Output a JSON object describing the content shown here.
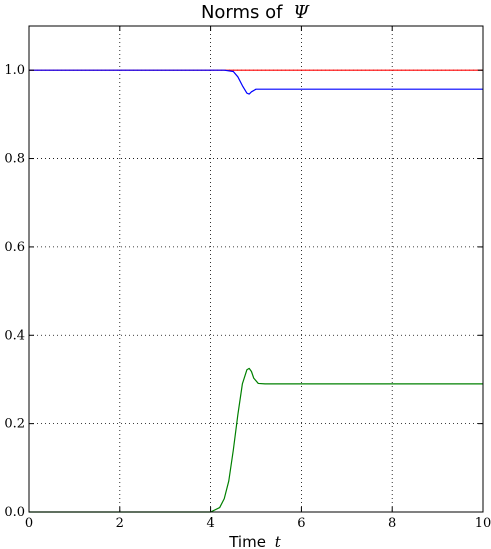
{
  "chart_data": {
    "type": "line",
    "title_prefix": "Norms of",
    "title_symbol": "Ψ",
    "xlabel_prefix": "Time",
    "xlabel_var": "t",
    "ylabel": "",
    "xlim": [
      0,
      10
    ],
    "ylim": [
      0,
      1.1
    ],
    "x_ticks": [
      0,
      2,
      4,
      6,
      8,
      10
    ],
    "x_tick_labels": [
      "0",
      "2",
      "4",
      "6",
      "8",
      "10"
    ],
    "y_ticks": [
      0.0,
      0.2,
      0.4,
      0.6,
      0.8,
      1.0
    ],
    "y_tick_labels": [
      "0.0",
      "0.2",
      "0.4",
      "0.6",
      "0.8",
      "1.0"
    ],
    "grid": true,
    "legend": "none",
    "series": [
      {
        "color": "#ff0000",
        "x": [
          0,
          10
        ],
        "y": [
          1.0,
          1.0
        ]
      },
      {
        "color": "#0000ff",
        "x": [
          0,
          4.3,
          4.5,
          4.6,
          4.7,
          4.8,
          4.85,
          4.9,
          5.0,
          5.2,
          6,
          8,
          10
        ],
        "y": [
          1.0,
          1.0,
          0.997,
          0.985,
          0.965,
          0.948,
          0.946,
          0.951,
          0.957,
          0.957,
          0.957,
          0.957,
          0.957
        ]
      },
      {
        "color": "#008000",
        "x": [
          0,
          4.0,
          4.2,
          4.3,
          4.4,
          4.5,
          4.6,
          4.7,
          4.8,
          4.85,
          4.9,
          4.95,
          5.05,
          5.2,
          6,
          8,
          10
        ],
        "y": [
          0.0,
          0.0,
          0.01,
          0.03,
          0.07,
          0.14,
          0.22,
          0.29,
          0.322,
          0.325,
          0.318,
          0.303,
          0.291,
          0.29,
          0.29,
          0.29,
          0.29
        ]
      }
    ]
  }
}
